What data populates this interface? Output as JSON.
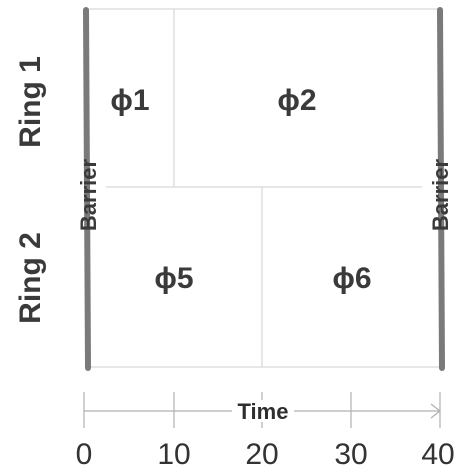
{
  "rings": [
    {
      "label": "Ring 1",
      "phases": [
        {
          "label": "ϕ1",
          "start": 0,
          "end": 10
        },
        {
          "label": "ϕ2",
          "start": 10,
          "end": 40
        }
      ]
    },
    {
      "label": "Ring 2",
      "phases": [
        {
          "label": "ϕ5",
          "start": 0,
          "end": 20
        },
        {
          "label": "ϕ6",
          "start": 20,
          "end": 40
        }
      ]
    }
  ],
  "barriers": [
    {
      "label": "Barrier",
      "time": 0
    },
    {
      "label": "Barrier",
      "time": 40
    }
  ],
  "axis": {
    "title": "Time",
    "ticks": [
      "0",
      "10",
      "20",
      "30",
      "40"
    ]
  }
}
